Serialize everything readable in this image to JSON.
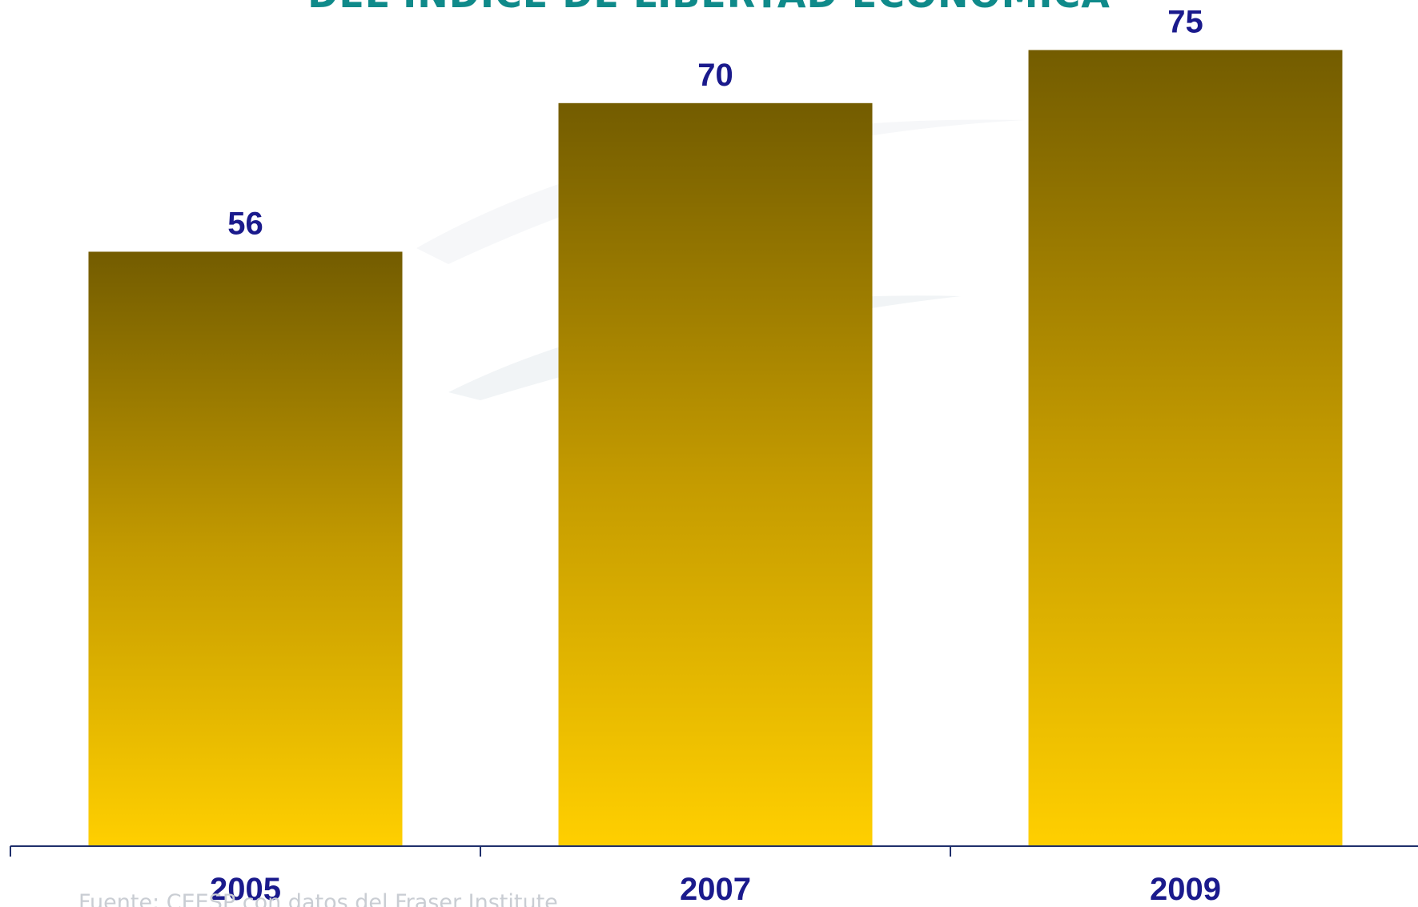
{
  "title": "DEL ÍNDICE DE LIBERTAD ECONÓMICA",
  "source_note": "Fuente: CEESP con datos del Fraser Institute",
  "colors": {
    "title": "#0f8a8a",
    "bar_top": "#735c00",
    "bar_bottom": "#ffcf00",
    "labels": "#1a1a8c",
    "axis": "#1f2f6b",
    "source": "#c9cdd3"
  },
  "chart_data": {
    "type": "bar",
    "title": "DEL ÍNDICE DE LIBERTAD ECONÓMICA",
    "categories": [
      "2005",
      "2007",
      "2009"
    ],
    "values": [
      56,
      70,
      75
    ],
    "xlabel": "",
    "ylabel": "",
    "grid": false,
    "legend": "none"
  }
}
